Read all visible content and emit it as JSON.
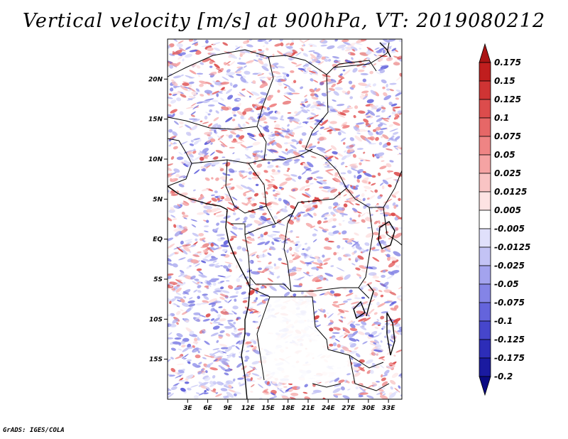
{
  "title": "Vertical velocity [m/s] at 900hPa, VT: 2019080212",
  "footer": "GrADS: IGES/COLA",
  "map": {
    "projection": "latlon",
    "lon_range": [
      0,
      35
    ],
    "lat_range": [
      -20,
      25
    ],
    "lon_ticks": [
      "3E",
      "6E",
      "9E",
      "12E",
      "15E",
      "18E",
      "21E",
      "24E",
      "27E",
      "30E",
      "33E"
    ],
    "lat_ticks": [
      "20N",
      "15N",
      "10N",
      "5N",
      "EQ",
      "5S",
      "10S",
      "15S"
    ],
    "field_colors": {
      "positive": "#d83a3a",
      "negative": "#4b45d8",
      "near_zero": "#ffffff"
    }
  },
  "colorbar": {
    "levels": [
      "0.175",
      "0.15",
      "0.125",
      "0.1",
      "0.075",
      "0.05",
      "0.025",
      "0.0125",
      "0.005",
      "-0.005",
      "-0.0125",
      "-0.025",
      "-0.05",
      "-0.075",
      "-0.1",
      "-0.125",
      "-0.175",
      "-0.2"
    ],
    "colors": [
      "#aa1414",
      "#c01e1e",
      "#cf3434",
      "#dc4c4c",
      "#e66767",
      "#ef8484",
      "#f5a3a3",
      "#f9c4c4",
      "#fde3e3",
      "#ffffff",
      "#e0e0fb",
      "#c3c3f5",
      "#a3a3ee",
      "#8484e6",
      "#6464dc",
      "#4646cc",
      "#2d2db8",
      "#1a1aa0",
      "#0a0a82"
    ]
  }
}
